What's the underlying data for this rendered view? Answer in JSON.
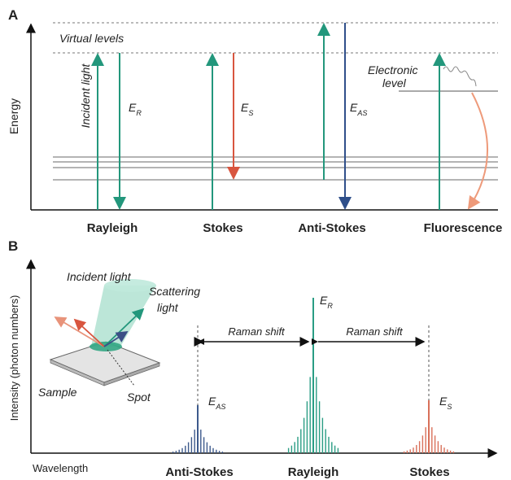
{
  "panel_a": {
    "label": "A",
    "y_axis_label": "Energy",
    "virtual_levels": "Virtual levels",
    "incident_light": "Incident light",
    "electronic_level": [
      "Electronic",
      "level"
    ],
    "energies": {
      "rayleigh": {
        "main": "E",
        "sub": "R"
      },
      "stokes": {
        "main": "E",
        "sub": "S"
      },
      "anti_stokes": {
        "main": "E",
        "sub": "AS"
      }
    },
    "processes": [
      "Rayleigh",
      "Stokes",
      "Anti-Stokes",
      "Fluorescence"
    ]
  },
  "panel_b": {
    "label": "B",
    "y_axis_label": "Intensity (photon numbers)",
    "x_axis_label": "Wavelength",
    "inset": {
      "incident_light": "Incident light",
      "scattering_light": [
        "Scattering",
        "light"
      ],
      "sample": "Sample",
      "spot": "Spot"
    },
    "raman_shift": [
      "Raman shift",
      "Raman shift"
    ],
    "energies": {
      "anti_stokes": {
        "main": "E",
        "sub": "AS"
      },
      "rayleigh": {
        "main": "E",
        "sub": "R"
      },
      "stokes": {
        "main": "E",
        "sub": "S"
      }
    },
    "peaks": [
      "Anti-Stokes",
      "Rayleigh",
      "Stokes"
    ]
  }
}
